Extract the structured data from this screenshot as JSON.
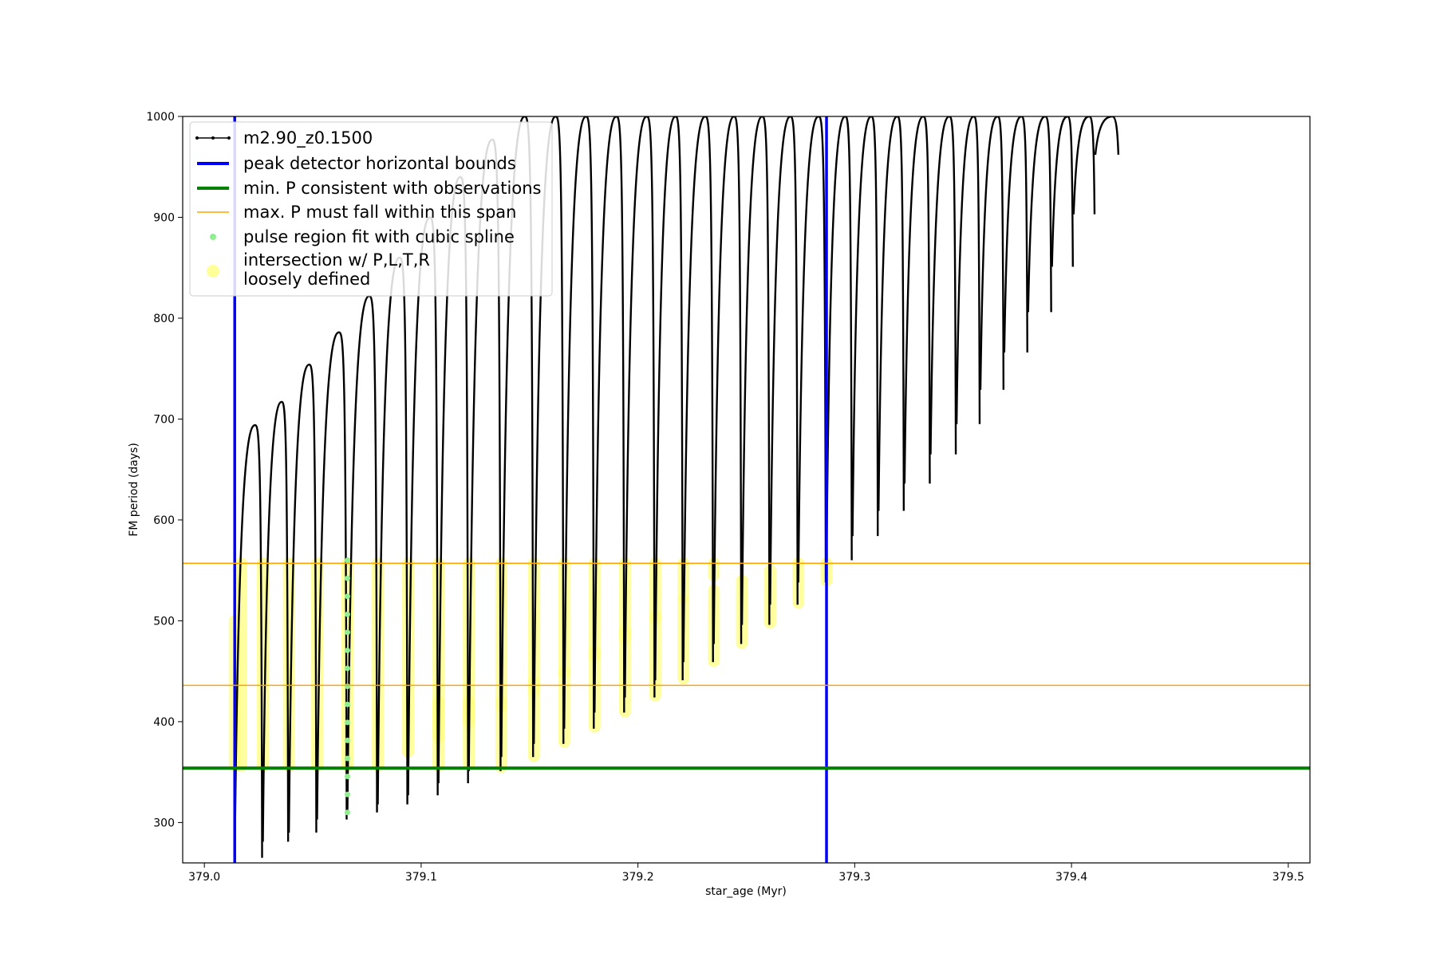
{
  "chart_data": {
    "type": "scatter",
    "xlabel": "star_age (Myr)",
    "ylabel": "FM period (days)",
    "xlim": [
      378.99,
      379.51
    ],
    "ylim": [
      260,
      1000
    ],
    "xticks": [
      379.0,
      379.1,
      379.2,
      379.3,
      379.4,
      379.5
    ],
    "xtick_labels": [
      "379.0",
      "379.1",
      "379.2",
      "379.3",
      "379.4",
      "379.5"
    ],
    "yticks": [
      300,
      400,
      500,
      600,
      700,
      800,
      900,
      1000
    ],
    "ytick_labels": [
      "300",
      "400",
      "500",
      "600",
      "700",
      "800",
      "900",
      "1000"
    ],
    "grid": false,
    "legend_position": "top-left",
    "legend": [
      {
        "label": "m2.90_z0.1500",
        "kind": "line-marker",
        "color": "#000000"
      },
      {
        "label": "peak detector horizontal bounds",
        "kind": "thick-line",
        "color": "#0000ff"
      },
      {
        "label": "min. P consistent with observations",
        "kind": "thick-line",
        "color": "#008000"
      },
      {
        "label": "max. P must fall within this span",
        "kind": "thin-line",
        "color": "#ffa500"
      },
      {
        "label": "pulse region fit with cubic spline",
        "kind": "dot",
        "color": "#90ee90"
      },
      {
        "label": "intersection w/ P,L,T,R\nloosely defined",
        "kind": "big-dot",
        "color": "#ffff80"
      }
    ],
    "reference_lines": {
      "peak_detector_bounds_x": [
        379.014,
        379.287
      ],
      "min_period_y": 354,
      "max_period_span_y": [
        436,
        557
      ]
    },
    "series": [
      {
        "name": "m2.90_z0.1500",
        "color": "#000000",
        "pulses": [
          {
            "start": 379.014,
            "end": 379.027,
            "peak": 694,
            "min": 265
          },
          {
            "start": 379.027,
            "end": 379.039,
            "peak": 717,
            "min": 281
          },
          {
            "start": 379.039,
            "end": 379.052,
            "peak": 754,
            "min": 290
          },
          {
            "start": 379.052,
            "end": 379.066,
            "peak": 786,
            "min": 303
          },
          {
            "start": 379.066,
            "end": 379.08,
            "peak": 822,
            "min": 310
          },
          {
            "start": 379.08,
            "end": 379.094,
            "peak": 860,
            "min": 318
          },
          {
            "start": 379.094,
            "end": 379.108,
            "peak": 900,
            "min": 327
          },
          {
            "start": 379.108,
            "end": 379.122,
            "peak": 940,
            "min": 339
          },
          {
            "start": 379.122,
            "end": 379.137,
            "peak": 977,
            "min": 351
          },
          {
            "start": 379.137,
            "end": 379.152,
            "peak": 1000,
            "min": 365
          },
          {
            "start": 379.152,
            "end": 379.166,
            "peak": 1000,
            "min": 378
          },
          {
            "start": 379.166,
            "end": 379.18,
            "peak": 1000,
            "min": 393
          },
          {
            "start": 379.18,
            "end": 379.194,
            "peak": 1000,
            "min": 409
          },
          {
            "start": 379.194,
            "end": 379.208,
            "peak": 1000,
            "min": 424
          },
          {
            "start": 379.208,
            "end": 379.221,
            "peak": 1000,
            "min": 441
          },
          {
            "start": 379.221,
            "end": 379.235,
            "peak": 1000,
            "min": 459
          },
          {
            "start": 379.235,
            "end": 379.248,
            "peak": 1000,
            "min": 477
          },
          {
            "start": 379.248,
            "end": 379.261,
            "peak": 1000,
            "min": 496
          },
          {
            "start": 379.261,
            "end": 379.274,
            "peak": 1000,
            "min": 516
          },
          {
            "start": 379.274,
            "end": 379.287,
            "peak": 1000,
            "min": 538
          },
          {
            "start": 379.287,
            "end": 379.299,
            "peak": 1000,
            "min": 560
          },
          {
            "start": 379.299,
            "end": 379.311,
            "peak": 1000,
            "min": 584
          },
          {
            "start": 379.311,
            "end": 379.323,
            "peak": 1000,
            "min": 609
          },
          {
            "start": 379.323,
            "end": 379.335,
            "peak": 1000,
            "min": 636
          },
          {
            "start": 379.335,
            "end": 379.347,
            "peak": 1000,
            "min": 665
          },
          {
            "start": 379.347,
            "end": 379.358,
            "peak": 1000,
            "min": 695
          },
          {
            "start": 379.358,
            "end": 379.369,
            "peak": 1000,
            "min": 729
          },
          {
            "start": 379.369,
            "end": 379.38,
            "peak": 1000,
            "min": 766
          },
          {
            "start": 379.38,
            "end": 379.391,
            "peak": 1000,
            "min": 806
          },
          {
            "start": 379.391,
            "end": 379.401,
            "peak": 1000,
            "min": 851
          },
          {
            "start": 379.401,
            "end": 379.411,
            "peak": 1000,
            "min": 903
          },
          {
            "start": 379.411,
            "end": 379.422,
            "peak": 1000,
            "min": 962
          }
        ]
      }
    ],
    "pulse_region_spline_fit": {
      "color": "#90ee90",
      "x": 379.066,
      "y_range": [
        310,
        560
      ]
    },
    "intersection_regions": [
      {
        "x": 379.014,
        "y_range": [
          356,
          500
        ]
      },
      {
        "x": 379.017,
        "y_range": [
          356,
          557
        ]
      },
      {
        "x": 379.027,
        "y_range": [
          356,
          557
        ]
      },
      {
        "x": 379.039,
        "y_range": [
          356,
          557
        ]
      },
      {
        "x": 379.052,
        "y_range": [
          356,
          557
        ]
      },
      {
        "x": 379.066,
        "y_range": [
          356,
          557
        ]
      },
      {
        "x": 379.08,
        "y_range": [
          356,
          557
        ]
      },
      {
        "x": 379.094,
        "y_range": [
          370,
          557
        ]
      },
      {
        "x": 379.108,
        "y_range": [
          385,
          557
        ]
      },
      {
        "x": 379.122,
        "y_range": [
          400,
          557
        ]
      },
      {
        "x": 379.137,
        "y_range": [
          415,
          557
        ]
      },
      {
        "x": 379.152,
        "y_range": [
          431,
          557
        ]
      },
      {
        "x": 379.166,
        "y_range": [
          448,
          557
        ]
      },
      {
        "x": 379.18,
        "y_range": [
          465,
          557
        ]
      },
      {
        "x": 379.194,
        "y_range": [
          483,
          557
        ]
      },
      {
        "x": 379.208,
        "y_range": [
          502,
          557
        ]
      },
      {
        "x": 379.221,
        "y_range": [
          523,
          557
        ]
      },
      {
        "x": 379.235,
        "y_range": [
          545,
          557
        ]
      },
      {
        "x": 379.108,
        "y_range": [
          356,
          420
        ]
      },
      {
        "x": 379.122,
        "y_range": [
          358,
          420
        ]
      },
      {
        "x": 379.137,
        "y_range": [
          355,
          420
        ]
      },
      {
        "x": 379.152,
        "y_range": [
          366,
          440
        ]
      },
      {
        "x": 379.166,
        "y_range": [
          380,
          450
        ]
      },
      {
        "x": 379.18,
        "y_range": [
          395,
          470
        ]
      },
      {
        "x": 379.194,
        "y_range": [
          410,
          490
        ]
      },
      {
        "x": 379.208,
        "y_range": [
          426,
          505
        ]
      },
      {
        "x": 379.221,
        "y_range": [
          443,
          520
        ]
      },
      {
        "x": 379.235,
        "y_range": [
          460,
          530
        ]
      },
      {
        "x": 379.248,
        "y_range": [
          478,
          540
        ]
      },
      {
        "x": 379.261,
        "y_range": [
          498,
          550
        ]
      },
      {
        "x": 379.274,
        "y_range": [
          518,
          557
        ]
      },
      {
        "x": 379.287,
        "y_range": [
          540,
          557
        ]
      }
    ]
  }
}
